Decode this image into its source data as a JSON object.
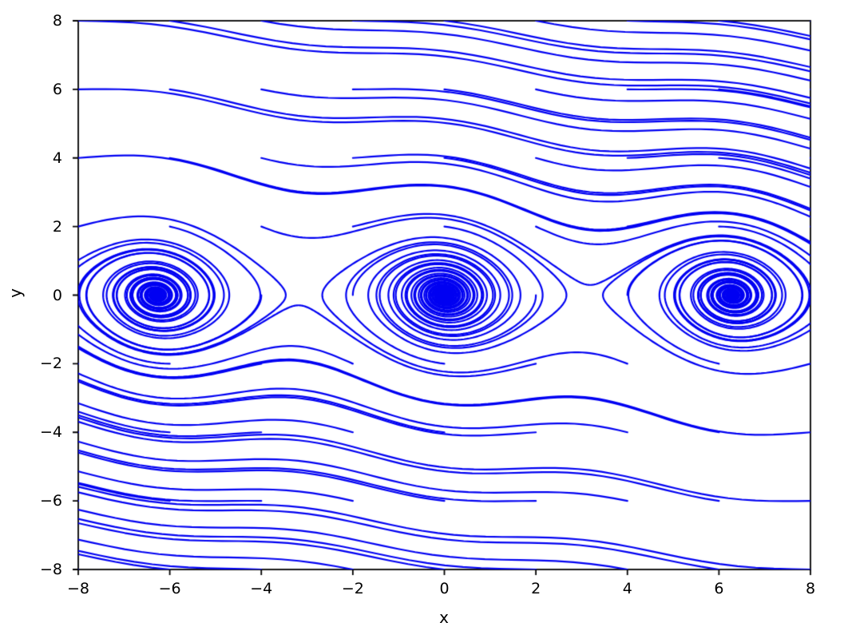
{
  "chart_data": {
    "type": "line",
    "subtype": "phase-portrait-trajectories",
    "title": "",
    "xlabel": "x",
    "ylabel": "y",
    "xlim": [
      -8,
      8
    ],
    "ylim": [
      -8,
      8
    ],
    "xticks": [
      -8,
      -6,
      -4,
      -2,
      0,
      2,
      4,
      6,
      8
    ],
    "yticks": [
      -8,
      -6,
      -4,
      -2,
      0,
      2,
      4,
      6,
      8
    ],
    "xtick_labels": [
      "−8",
      "−6",
      "−4",
      "−2",
      "0",
      "2",
      "4",
      "6",
      "8"
    ],
    "ytick_labels": [
      "−8",
      "−6",
      "−4",
      "−2",
      "0",
      "2",
      "4",
      "6",
      "8"
    ],
    "grid": false,
    "legend": null,
    "line_color": "#0000f2",
    "line_width": 2.2,
    "axis_color": "#000000",
    "tick_length": 7,
    "system": {
      "description": "Damped pendulum phase portrait: dx/dt = y, dy/dt = -sin(x) - b*y",
      "damping_b": 0.15
    },
    "equilibria": {
      "stable_spirals": [
        [
          -6.2832,
          0
        ],
        [
          0,
          0
        ],
        [
          6.2832,
          0
        ]
      ],
      "saddles": [
        [
          -3.1416,
          0
        ],
        [
          3.1416,
          0
        ]
      ]
    },
    "integration": {
      "method": "rk4",
      "dt": 0.05,
      "t_max": 80
    },
    "seeds": [
      [
        -8,
        -8
      ],
      [
        -8,
        -6
      ],
      [
        -8,
        -4
      ],
      [
        -8,
        -2
      ],
      [
        -8,
        0
      ],
      [
        -8,
        2
      ],
      [
        -8,
        4
      ],
      [
        -8,
        6
      ],
      [
        -8,
        8
      ],
      [
        -6,
        -8
      ],
      [
        -6,
        -6
      ],
      [
        -6,
        -4
      ],
      [
        -6,
        -2
      ],
      [
        -6,
        0
      ],
      [
        -6,
        2
      ],
      [
        -6,
        4
      ],
      [
        -6,
        6
      ],
      [
        -6,
        8
      ],
      [
        -4,
        -8
      ],
      [
        -4,
        -6
      ],
      [
        -4,
        -4
      ],
      [
        -4,
        -2
      ],
      [
        -4,
        0
      ],
      [
        -4,
        2
      ],
      [
        -4,
        4
      ],
      [
        -4,
        6
      ],
      [
        -4,
        8
      ],
      [
        -2,
        -8
      ],
      [
        -2,
        -6
      ],
      [
        -2,
        -4
      ],
      [
        -2,
        -2
      ],
      [
        -2,
        0
      ],
      [
        -2,
        2
      ],
      [
        -2,
        4
      ],
      [
        -2,
        6
      ],
      [
        -2,
        8
      ],
      [
        0,
        -8
      ],
      [
        0,
        -6
      ],
      [
        0,
        -4
      ],
      [
        0,
        -2
      ],
      [
        0,
        0
      ],
      [
        0,
        2
      ],
      [
        0,
        4
      ],
      [
        0,
        6
      ],
      [
        0,
        8
      ],
      [
        2,
        -8
      ],
      [
        2,
        -6
      ],
      [
        2,
        -4
      ],
      [
        2,
        -2
      ],
      [
        2,
        0
      ],
      [
        2,
        2
      ],
      [
        2,
        4
      ],
      [
        2,
        6
      ],
      [
        2,
        8
      ],
      [
        4,
        -8
      ],
      [
        4,
        -6
      ],
      [
        4,
        -4
      ],
      [
        4,
        -2
      ],
      [
        4,
        0
      ],
      [
        4,
        2
      ],
      [
        4,
        4
      ],
      [
        4,
        6
      ],
      [
        4,
        8
      ],
      [
        6,
        -8
      ],
      [
        6,
        -6
      ],
      [
        6,
        -4
      ],
      [
        6,
        -2
      ],
      [
        6,
        0
      ],
      [
        6,
        2
      ],
      [
        6,
        4
      ],
      [
        6,
        6
      ],
      [
        6,
        8
      ],
      [
        8,
        -8
      ],
      [
        8,
        -6
      ],
      [
        8,
        -4
      ],
      [
        8,
        -2
      ],
      [
        8,
        0
      ],
      [
        8,
        2
      ],
      [
        8,
        4
      ],
      [
        8,
        6
      ],
      [
        8,
        8
      ]
    ]
  }
}
